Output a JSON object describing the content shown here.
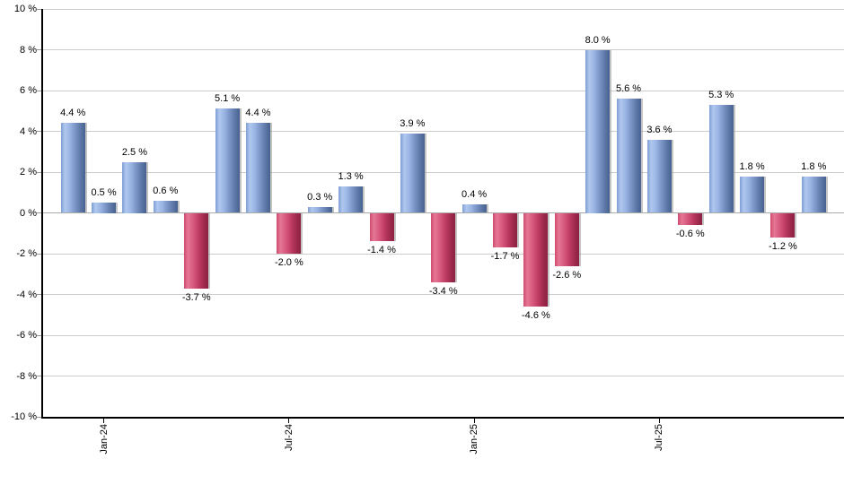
{
  "chart_data": {
    "type": "bar",
    "title": "",
    "legend": false,
    "grid": true,
    "y_axis": {
      "min": -10,
      "max": 10,
      "step": 2,
      "unit": "%",
      "tick_labels": [
        "10 %",
        "8 %",
        "6 %",
        "4 %",
        "2 %",
        "0 %",
        "-2 %",
        "-4 %",
        "-6 %",
        "-8 %",
        "-10 %"
      ]
    },
    "x_axis": {
      "ticks": [
        {
          "label": "Jan-24",
          "bar_index": 1
        },
        {
          "label": "Jul-24",
          "bar_index": 7
        },
        {
          "label": "Jan-25",
          "bar_index": 13
        },
        {
          "label": "Jul-25",
          "bar_index": 19
        }
      ]
    },
    "bars": [
      {
        "value": 4.4,
        "label": "4.4 %"
      },
      {
        "value": 0.5,
        "label": "0.5 %"
      },
      {
        "value": 2.5,
        "label": "2.5 %"
      },
      {
        "value": 0.6,
        "label": "0.6 %"
      },
      {
        "value": -3.7,
        "label": "-3.7 %"
      },
      {
        "value": 5.1,
        "label": "5.1 %"
      },
      {
        "value": 4.4,
        "label": "4.4 %"
      },
      {
        "value": -2.0,
        "label": "-2.0 %"
      },
      {
        "value": 0.3,
        "label": "0.3 %"
      },
      {
        "value": 1.3,
        "label": "1.3 %"
      },
      {
        "value": -1.4,
        "label": "-1.4 %"
      },
      {
        "value": 3.9,
        "label": "3.9 %"
      },
      {
        "value": -3.4,
        "label": "-3.4 %"
      },
      {
        "value": 0.4,
        "label": "0.4 %"
      },
      {
        "value": -1.7,
        "label": "-1.7 %"
      },
      {
        "value": -4.6,
        "label": "-4.6 %"
      },
      {
        "value": -2.6,
        "label": "-2.6 %"
      },
      {
        "value": 8.0,
        "label": "8.0 %"
      },
      {
        "value": 5.6,
        "label": "5.6 %"
      },
      {
        "value": 3.6,
        "label": "3.6 %"
      },
      {
        "value": -0.6,
        "label": "-0.6 %"
      },
      {
        "value": 5.3,
        "label": "5.3 %"
      },
      {
        "value": 1.8,
        "label": "1.8 %"
      },
      {
        "value": -1.2,
        "label": "-1.2 %"
      },
      {
        "value": 1.8,
        "label": "1.8 %"
      }
    ],
    "colors": {
      "positive_bar": "#7b9bd2",
      "negative_bar": "#cc4468",
      "gridline": "#cccccc",
      "zero_line": "#aaaaaa",
      "axis": "#000000",
      "label_text": "#000000"
    }
  }
}
